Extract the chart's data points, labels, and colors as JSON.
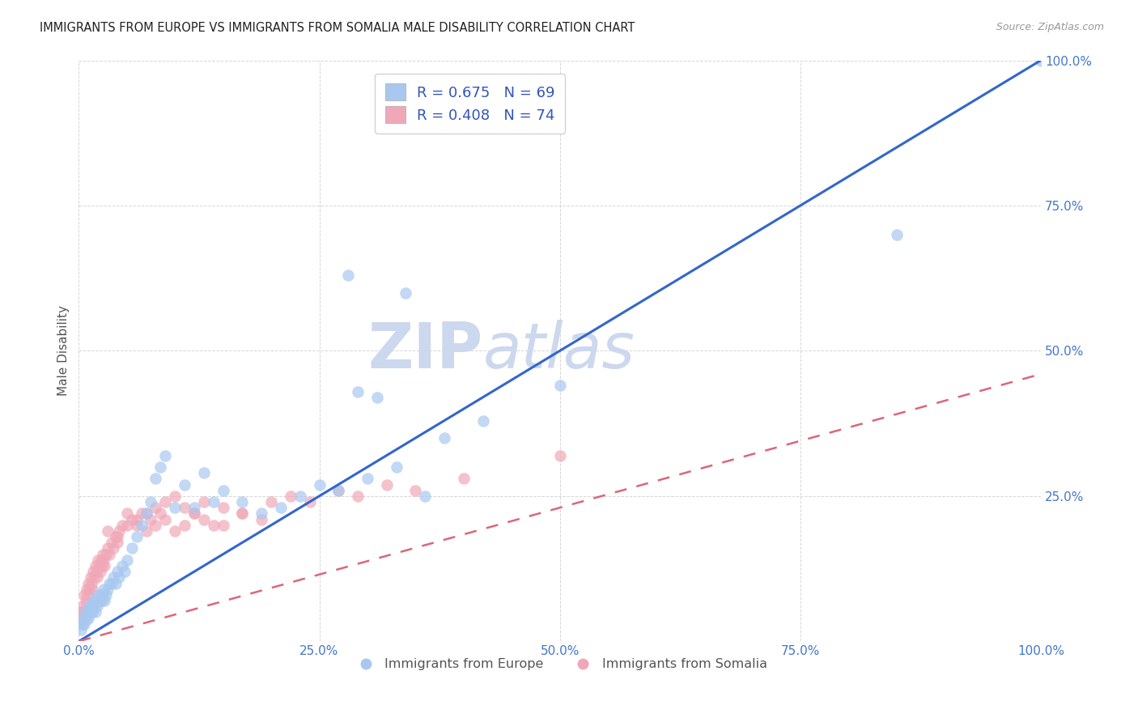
{
  "title": "IMMIGRANTS FROM EUROPE VS IMMIGRANTS FROM SOMALIA MALE DISABILITY CORRELATION CHART",
  "source": "Source: ZipAtlas.com",
  "ylabel": "Male Disability",
  "xlim": [
    0,
    1.0
  ],
  "ylim": [
    0,
    1.0
  ],
  "xtick_labels": [
    "0.0%",
    "25.0%",
    "50.0%",
    "75.0%",
    "100.0%"
  ],
  "xtick_vals": [
    0.0,
    0.25,
    0.5,
    0.75,
    1.0
  ],
  "ytick_labels": [
    "25.0%",
    "50.0%",
    "75.0%",
    "100.0%"
  ],
  "ytick_vals": [
    0.25,
    0.5,
    0.75,
    1.0
  ],
  "legend_R_europe": "0.675",
  "legend_N_europe": "69",
  "legend_R_somalia": "0.408",
  "legend_N_somalia": "74",
  "europe_color": "#a8c8f0",
  "somalia_color": "#f0a8b8",
  "europe_line_color": "#3366cc",
  "somalia_line_color": "#dd6677",
  "watermark_color": "#ccd8ee",
  "europe_scatter_x": [
    0.002,
    0.003,
    0.004,
    0.005,
    0.006,
    0.007,
    0.008,
    0.009,
    0.01,
    0.011,
    0.012,
    0.013,
    0.014,
    0.015,
    0.016,
    0.017,
    0.018,
    0.019,
    0.02,
    0.021,
    0.022,
    0.023,
    0.024,
    0.025,
    0.026,
    0.027,
    0.028,
    0.03,
    0.032,
    0.034,
    0.036,
    0.038,
    0.04,
    0.042,
    0.045,
    0.048,
    0.05,
    0.055,
    0.06,
    0.065,
    0.07,
    0.075,
    0.08,
    0.085,
    0.09,
    0.1,
    0.11,
    0.12,
    0.13,
    0.14,
    0.15,
    0.17,
    0.19,
    0.21,
    0.23,
    0.25,
    0.27,
    0.3,
    0.33,
    0.36,
    0.38,
    0.42,
    0.29,
    0.31,
    0.34,
    0.28,
    0.5,
    0.85,
    1.0
  ],
  "europe_scatter_y": [
    0.02,
    0.03,
    0.03,
    0.04,
    0.03,
    0.05,
    0.04,
    0.05,
    0.04,
    0.06,
    0.05,
    0.06,
    0.05,
    0.07,
    0.06,
    0.05,
    0.07,
    0.06,
    0.08,
    0.07,
    0.07,
    0.08,
    0.07,
    0.08,
    0.09,
    0.07,
    0.08,
    0.09,
    0.1,
    0.1,
    0.11,
    0.1,
    0.12,
    0.11,
    0.13,
    0.12,
    0.14,
    0.16,
    0.18,
    0.2,
    0.22,
    0.24,
    0.28,
    0.3,
    0.32,
    0.23,
    0.27,
    0.23,
    0.29,
    0.24,
    0.26,
    0.24,
    0.22,
    0.23,
    0.25,
    0.27,
    0.26,
    0.28,
    0.3,
    0.25,
    0.35,
    0.38,
    0.43,
    0.42,
    0.6,
    0.63,
    0.44,
    0.7,
    1.0
  ],
  "somalia_scatter_x": [
    0.002,
    0.003,
    0.004,
    0.005,
    0.006,
    0.007,
    0.008,
    0.009,
    0.01,
    0.011,
    0.012,
    0.013,
    0.014,
    0.015,
    0.016,
    0.017,
    0.018,
    0.019,
    0.02,
    0.021,
    0.022,
    0.023,
    0.024,
    0.025,
    0.026,
    0.027,
    0.028,
    0.03,
    0.032,
    0.034,
    0.036,
    0.038,
    0.04,
    0.042,
    0.045,
    0.05,
    0.055,
    0.06,
    0.065,
    0.07,
    0.075,
    0.08,
    0.085,
    0.09,
    0.1,
    0.11,
    0.12,
    0.13,
    0.14,
    0.15,
    0.17,
    0.19,
    0.22,
    0.24,
    0.27,
    0.29,
    0.32,
    0.35,
    0.4,
    0.5,
    0.03,
    0.04,
    0.05,
    0.06,
    0.07,
    0.08,
    0.09,
    0.1,
    0.11,
    0.12,
    0.13,
    0.15,
    0.17,
    0.2
  ],
  "somalia_scatter_y": [
    0.05,
    0.04,
    0.06,
    0.05,
    0.08,
    0.07,
    0.09,
    0.08,
    0.1,
    0.09,
    0.11,
    0.1,
    0.09,
    0.12,
    0.11,
    0.13,
    0.12,
    0.11,
    0.14,
    0.13,
    0.12,
    0.14,
    0.13,
    0.15,
    0.14,
    0.13,
    0.15,
    0.16,
    0.15,
    0.17,
    0.16,
    0.18,
    0.17,
    0.19,
    0.2,
    0.22,
    0.21,
    0.2,
    0.22,
    0.19,
    0.21,
    0.23,
    0.22,
    0.24,
    0.25,
    0.23,
    0.22,
    0.24,
    0.2,
    0.23,
    0.22,
    0.21,
    0.25,
    0.24,
    0.26,
    0.25,
    0.27,
    0.26,
    0.28,
    0.32,
    0.19,
    0.18,
    0.2,
    0.21,
    0.22,
    0.2,
    0.21,
    0.19,
    0.2,
    0.22,
    0.21,
    0.2,
    0.22,
    0.24
  ]
}
